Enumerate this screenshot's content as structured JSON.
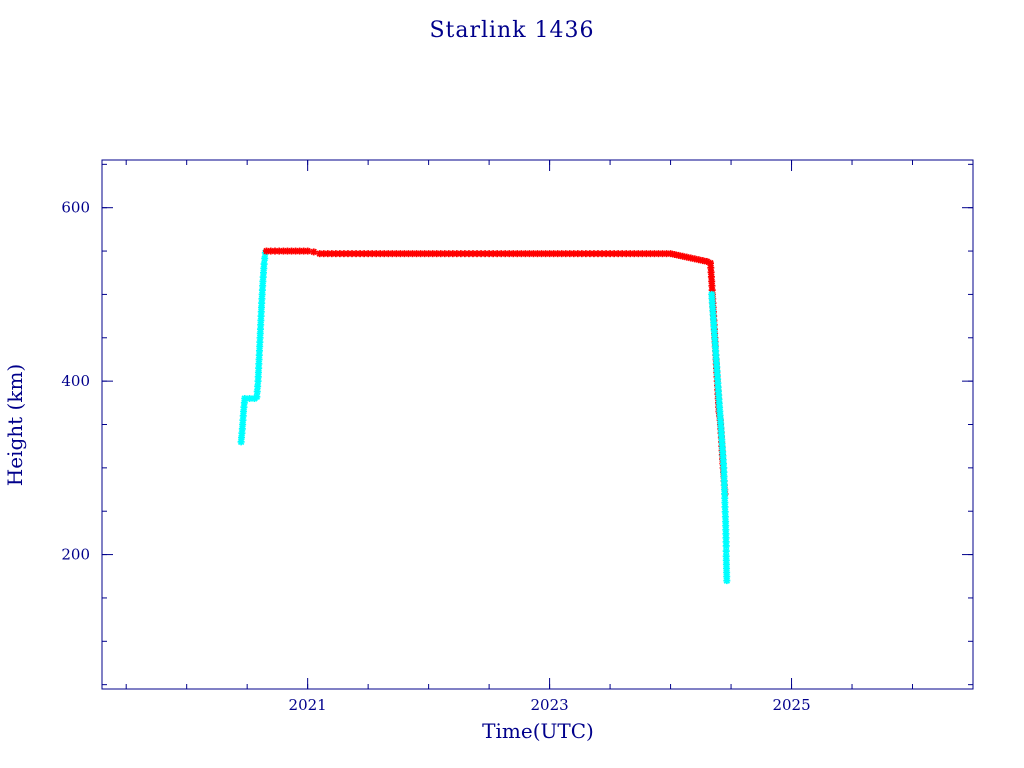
{
  "chart_data": {
    "type": "scatter",
    "title": "Starlink 1436",
    "xlabel": "Time(UTC)",
    "ylabel": "Height (km)",
    "xlim": [
      2019.3,
      2026.5
    ],
    "ylim": [
      45,
      655
    ],
    "x_ticks": [
      2021,
      2023,
      2025
    ],
    "x_tick_labels": [
      "2021",
      "2023",
      "2025"
    ],
    "y_ticks": [
      200,
      400,
      600
    ],
    "y_tick_labels": [
      "200",
      "400",
      "600"
    ],
    "grid": false,
    "colors": {
      "axis": "#00008b",
      "text": "#00008b",
      "raising": "#00ffff",
      "operational": "#ff0000",
      "decay_line": "#cc00cc"
    },
    "series": [
      {
        "color": "#00ffff",
        "values": [
          {
            "x": 2020.45,
            "y": 330
          },
          {
            "x": 2020.46,
            "y": 345
          },
          {
            "x": 2020.47,
            "y": 365
          },
          {
            "x": 2020.48,
            "y": 380
          },
          {
            "x": 2020.52,
            "y": 380
          },
          {
            "x": 2020.56,
            "y": 380
          },
          {
            "x": 2020.58,
            "y": 382
          },
          {
            "x": 2020.59,
            "y": 400
          },
          {
            "x": 2020.6,
            "y": 430
          },
          {
            "x": 2020.61,
            "y": 460
          },
          {
            "x": 2020.62,
            "y": 490
          },
          {
            "x": 2020.63,
            "y": 515
          },
          {
            "x": 2020.64,
            "y": 535
          },
          {
            "x": 2020.65,
            "y": 548
          }
        ]
      },
      {
        "color": "#ff0000",
        "values": [
          {
            "x": 2020.66,
            "y": 550
          },
          {
            "x": 2020.8,
            "y": 550
          },
          {
            "x": 2021.0,
            "y": 550
          },
          {
            "x": 2021.05,
            "y": 549
          },
          {
            "x": 2021.1,
            "y": 547
          },
          {
            "x": 2021.5,
            "y": 547
          },
          {
            "x": 2022.0,
            "y": 547
          },
          {
            "x": 2022.5,
            "y": 547
          },
          {
            "x": 2023.0,
            "y": 547
          },
          {
            "x": 2023.5,
            "y": 547
          },
          {
            "x": 2024.0,
            "y": 547
          },
          {
            "x": 2024.1,
            "y": 544
          },
          {
            "x": 2024.2,
            "y": 541
          },
          {
            "x": 2024.3,
            "y": 538
          },
          {
            "x": 2024.33,
            "y": 536
          },
          {
            "x": 2024.34,
            "y": 515
          },
          {
            "x": 2024.35,
            "y": 490
          },
          {
            "x": 2024.36,
            "y": 465
          },
          {
            "x": 2024.37,
            "y": 440
          },
          {
            "x": 2024.38,
            "y": 415
          },
          {
            "x": 2024.39,
            "y": 390
          },
          {
            "x": 2024.4,
            "y": 365
          },
          {
            "x": 2024.41,
            "y": 355
          },
          {
            "x": 2024.42,
            "y": 335
          },
          {
            "x": 2024.43,
            "y": 310
          },
          {
            "x": 2024.44,
            "y": 290
          },
          {
            "x": 2024.45,
            "y": 270
          }
        ]
      },
      {
        "color": "#00ffff",
        "values": [
          {
            "x": 2024.34,
            "y": 500
          },
          {
            "x": 2024.44,
            "y": 300
          },
          {
            "x": 2024.45,
            "y": 255
          },
          {
            "x": 2024.455,
            "y": 238
          },
          {
            "x": 2024.46,
            "y": 210
          },
          {
            "x": 2024.46,
            "y": 198
          },
          {
            "x": 2024.465,
            "y": 170
          }
        ]
      }
    ]
  }
}
